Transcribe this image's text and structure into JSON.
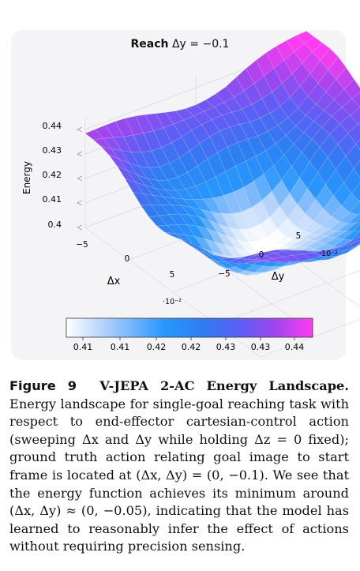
{
  "chart_data": {
    "type": "surface3d",
    "title_bold": "Reach",
    "title_rest": "Δy = −0.1",
    "xlabel": "Δx",
    "ylabel": "Δy",
    "zlabel": "Energy",
    "x_exponent": "·10⁻²",
    "y_exponent": "·10⁻²",
    "x_ticks": [
      "−5",
      "0",
      "5"
    ],
    "y_ticks": [
      "−5",
      "0",
      "5"
    ],
    "z_ticks": [
      "0.44",
      "0.43",
      "0.42",
      "0.41",
      "0.4"
    ],
    "xlim": [
      -7.5,
      7.5
    ],
    "ylim": [
      -7.5,
      7.5
    ],
    "zlim": [
      0.4,
      0.445
    ],
    "minimum": {
      "x": 0,
      "y": -0.05,
      "z": 0.401
    },
    "colorbar": {
      "ticks": [
        "0.41",
        "0.41",
        "0.42",
        "0.42",
        "0.43",
        "0.43",
        "0.44"
      ],
      "colors": [
        "#ffffff",
        "#b4d2fa",
        "#2896ff",
        "#2d7ef2",
        "#5a5ff5",
        "#a046ef",
        "#ff3cf0"
      ]
    }
  },
  "caption": {
    "label": "Figure 9",
    "title": "V-JEPA 2-AC Energy Landscape.",
    "body": "Energy landscape for single-goal reaching task with respect to end-effector cartesian-control action (sweeping Δx and Δy while holding Δz = 0 fixed); ground truth action relating goal image to start frame is located at (Δx, Δy) = (0, −0.1). We see that the energy function achieves its minimum around (Δx, Δy) ≈ (0, −0.05), indicating that the model has learned to reasonably infer the effect of actions without requiring precision sensing."
  }
}
